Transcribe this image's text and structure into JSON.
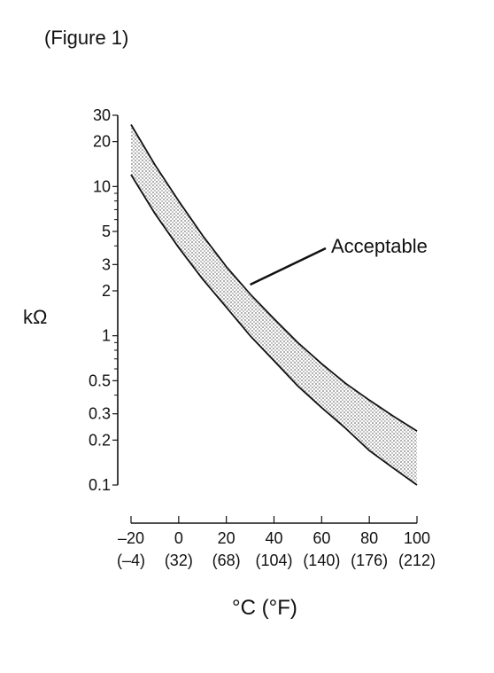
{
  "figure_label": "(Figure 1)",
  "chart_data": {
    "type": "area",
    "title": "",
    "xlabel": "°C (°F)",
    "ylabel": "kΩ",
    "y_scale": "log",
    "ylim": [
      0.1,
      30
    ],
    "xlim": [
      -20,
      100
    ],
    "y_ticks": [
      0.1,
      0.2,
      0.3,
      0.5,
      1,
      2,
      3,
      5,
      10,
      20,
      30
    ],
    "y_tick_labels": [
      "0.1",
      "0.2",
      "0.3",
      "0.5",
      "1",
      "2",
      "3",
      "5",
      "10",
      "20",
      "30"
    ],
    "x_ticks": [
      -20,
      0,
      20,
      40,
      60,
      80,
      100
    ],
    "x_tick_labels": [
      "–20",
      "0",
      "20",
      "40",
      "60",
      "80",
      "100"
    ],
    "x_tick_labels_f": [
      "(–4)",
      "(32)",
      "(68)",
      "(104)",
      "(140)",
      "(176)",
      "(212)"
    ],
    "x": [
      -20,
      -10,
      0,
      10,
      20,
      30,
      40,
      50,
      60,
      70,
      80,
      90,
      100
    ],
    "series": [
      {
        "values": [
          26,
          14,
          8.0,
          4.7,
          2.9,
          1.9,
          1.3,
          0.9,
          0.65,
          0.48,
          0.37,
          0.29,
          0.23
        ]
      },
      {
        "values": [
          12,
          6.6,
          3.9,
          2.4,
          1.55,
          1.0,
          0.68,
          0.46,
          0.33,
          0.24,
          0.17,
          0.13,
          0.1
        ]
      }
    ],
    "annotations": [
      {
        "text": "Acceptable",
        "x": 30,
        "y": 2.2
      }
    ],
    "grid": false,
    "colors": {
      "band_fill": "#c8c8c8",
      "line": "#111111"
    }
  }
}
